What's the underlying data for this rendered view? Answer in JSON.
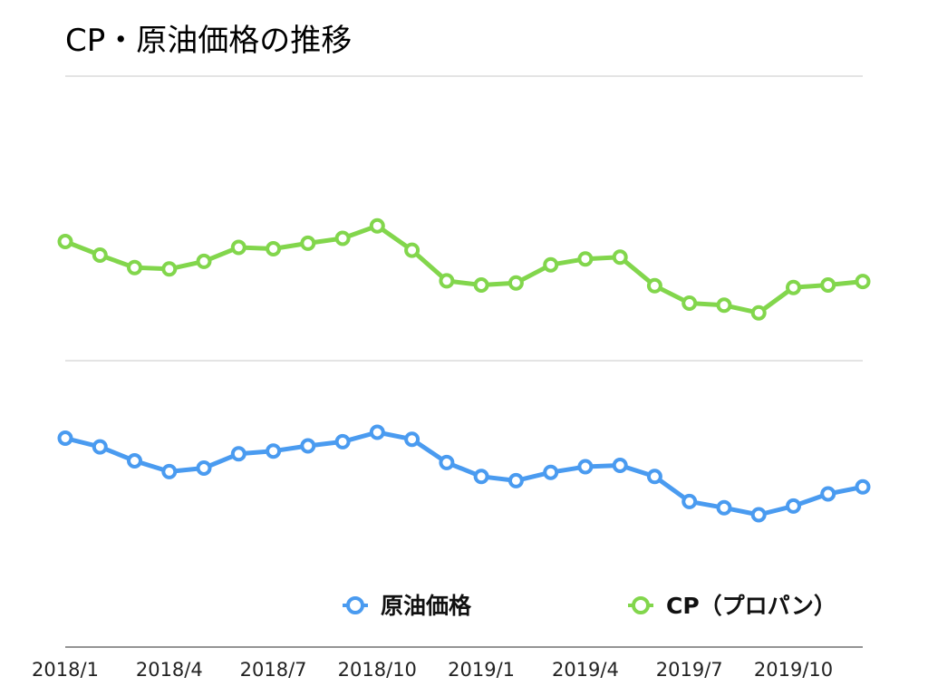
{
  "chart_data": {
    "type": "line",
    "title": "CP・原油価格の推移",
    "xlabel": "",
    "ylabel": "",
    "grid": true,
    "legend_position": "bottom-right",
    "categories": [
      "2018/1",
      "2018/2",
      "2018/3",
      "2018/4",
      "2018/5",
      "2018/6",
      "2018/7",
      "2018/8",
      "2018/9",
      "2018/10",
      "2018/11",
      "2018/12",
      "2019/1",
      "2019/2",
      "2019/3",
      "2019/4",
      "2019/5",
      "2019/6",
      "2019/7",
      "2019/8",
      "2019/9",
      "2019/10",
      "2019/11",
      "2019/12"
    ],
    "tick_labels": [
      "2018/1",
      "2018/4",
      "2018/7",
      "2018/10",
      "2019/1",
      "2019/4",
      "2019/7",
      "2019/10"
    ],
    "tick_indices": [
      0,
      3,
      6,
      9,
      12,
      15,
      18,
      21
    ],
    "y_scale": [
      0,
      1000
    ],
    "series": [
      {
        "name": "原油価格",
        "color": "#4a9bf0",
        "values": [
          600,
          575,
          535,
          504,
          514,
          555,
          563,
          578,
          590,
          617,
          597,
          530,
          490,
          478,
          502,
          518,
          522,
          490,
          418,
          400,
          380,
          405,
          440,
          460
        ]
      },
      {
        "name": "CP（プロパン）",
        "color": "#82d64c",
        "values": [
          1165,
          1126,
          1090,
          1086,
          1108,
          1148,
          1144,
          1160,
          1174,
          1210,
          1140,
          1052,
          1040,
          1046,
          1098,
          1115,
          1120,
          1038,
          988,
          982,
          960,
          1033,
          1040,
          1050
        ]
      }
    ]
  }
}
